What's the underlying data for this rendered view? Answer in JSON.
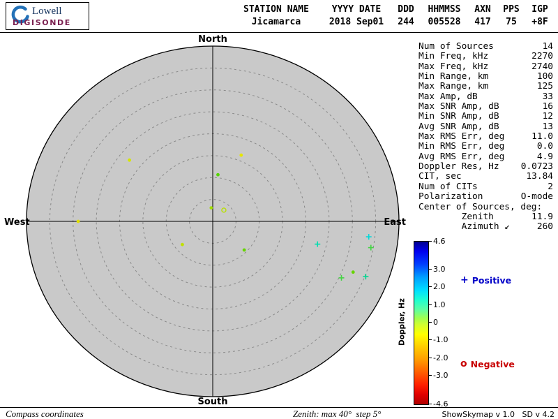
{
  "logo": {
    "name": "Lowell",
    "product": "DIGISONDE"
  },
  "header": {
    "columns": [
      {
        "label": "STATION NAME",
        "value": "Jicamarca"
      },
      {
        "label": "YYYY DATE",
        "value": "2018 Sep01"
      },
      {
        "label": "DDD",
        "value": "244"
      },
      {
        "label": "HHMMSS",
        "value": "005528"
      },
      {
        "label": "AXN",
        "value": "417"
      },
      {
        "label": "PPS",
        "value": "75"
      },
      {
        "label": "IGP",
        "value": "+8F"
      }
    ]
  },
  "stats": {
    "rows": [
      {
        "label": "Num of Sources",
        "value": "14"
      },
      {
        "label": "Min Freq, kHz",
        "value": "2270"
      },
      {
        "label": "Max Freq, kHz",
        "value": "2740"
      },
      {
        "label": "Min Range, km",
        "value": "100"
      },
      {
        "label": "Max Range, km",
        "value": "125"
      },
      {
        "label": "Max Amp, dB",
        "value": "33"
      },
      {
        "label": "Max SNR Amp, dB",
        "value": "16"
      },
      {
        "label": "Min SNR Amp, dB",
        "value": "12"
      },
      {
        "label": "Avg SNR Amp, dB",
        "value": "13"
      },
      {
        "label": "Max RMS Err, deg",
        "value": "11.0"
      },
      {
        "label": "Min RMS Err, deg",
        "value": "0.0"
      },
      {
        "label": "Avg RMS Err, deg",
        "value": "4.9"
      },
      {
        "label": "Doppler Res, Hz",
        "value": "0.0723"
      },
      {
        "label": "CIT, sec",
        "value": "13.84"
      },
      {
        "label": "Num of CITs",
        "value": "2"
      },
      {
        "label": "Polarization",
        "value": "O-mode"
      },
      {
        "label": "Center of Sources, deg:",
        "value": ""
      },
      {
        "label": "        Zenith",
        "value": "11.9"
      },
      {
        "label": "        Azimuth ↙",
        "value": "260"
      }
    ]
  },
  "legend": {
    "positive_symbol": "+",
    "positive_label": "Positive",
    "positive_color": "#0000c8",
    "negative_symbol": "o",
    "negative_label": "Negative",
    "negative_color": "#c80000"
  },
  "footer": {
    "left": "Compass coordinates",
    "center": "Zenith: max 40°  step 5°",
    "right": "ShowSkymap v 1.0   SD v 4.2"
  },
  "chart_data": {
    "type": "scatter",
    "projection": "polar-skymap",
    "coordinate_system": "Compass coordinates",
    "orientation": {
      "top": "North",
      "bottom": "South",
      "left": "West",
      "right": "East"
    },
    "zenith_max_deg": 40,
    "zenith_step_deg": 5,
    "grid": {
      "rings": "dashed every 5 deg zenith",
      "crosshair": true,
      "disk_fill": "#c9c9c9"
    },
    "colorbar": {
      "title": "Doppler, Hz",
      "min": -4.6,
      "max": 4.6,
      "tick_labels": [
        "4.6",
        "3.0",
        "2.0",
        "1.0",
        "0",
        "-1.0",
        "-2.0",
        "-3.0",
        "-4.6"
      ],
      "gradient": [
        "#00008f 0%",
        "#0000f0 6%",
        "#0040ff 14%",
        "#00a0ff 22%",
        "#00e0ff 30%",
        "#20ffd0 36%",
        "#60ffa0 42%",
        "#a0ff50 47%",
        "#d0ff30 51%",
        "#ffff00 57%",
        "#ffd000 64%",
        "#ffa000 72%",
        "#ff6000 80%",
        "#ff2000 88%",
        "#e00000 94%",
        "#b00000 100%"
      ]
    },
    "points": [
      {
        "az": 308,
        "zen": 22.7,
        "symbol": "dot",
        "color": "#d6e600"
      },
      {
        "az": 22,
        "zen": 16.3,
        "symbol": "dot",
        "color": "#e6e600"
      },
      {
        "az": 6,
        "zen": 10.7,
        "symbol": "dot",
        "color": "#55d400"
      },
      {
        "az": 354,
        "zen": 3.1,
        "symbol": "dot",
        "color": "#a0dd00"
      },
      {
        "az": 43,
        "zen": 3.5,
        "symbol": "circle",
        "color": "#b8e000"
      },
      {
        "az": 270,
        "zen": 28.9,
        "symbol": "dot",
        "color": "#e0e000"
      },
      {
        "az": 231,
        "zen": 8.4,
        "symbol": "dot",
        "color": "#c0e000"
      },
      {
        "az": 134,
        "zen": 9.4,
        "symbol": "dot",
        "color": "#66d400"
      },
      {
        "az": 103,
        "zen": 23.1,
        "symbol": "plus",
        "color": "#00ddb0"
      },
      {
        "az": 96,
        "zen": 33.7,
        "symbol": "plus",
        "color": "#00d8d8"
      },
      {
        "az": 100,
        "zen": 34.5,
        "symbol": "plus",
        "color": "#44d444"
      },
      {
        "az": 115,
        "zen": 30.5,
        "symbol": "plus",
        "color": "#44d444"
      },
      {
        "az": 111,
        "zen": 32.3,
        "symbol": "dot",
        "color": "#66d400"
      },
      {
        "az": 111,
        "zen": 35.2,
        "symbol": "plus",
        "color": "#00d890"
      }
    ]
  }
}
